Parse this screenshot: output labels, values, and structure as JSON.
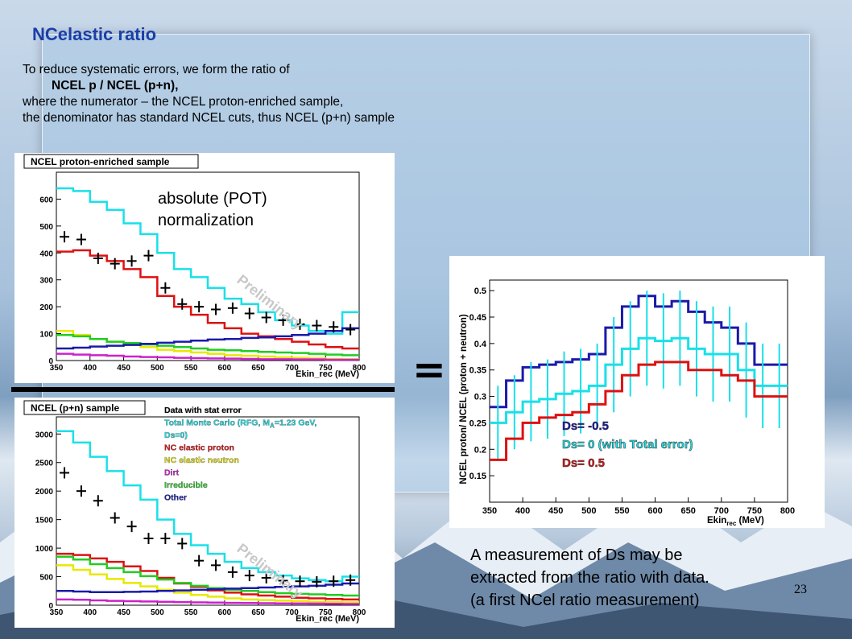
{
  "slide": {
    "title": "NCelastic ratio",
    "intro_lines": [
      "To reduce systematic errors, we form the ratio of",
      "NCEL p / NCEL (p+n),",
      "where the numerator – the NCEL proton-enriched sample,",
      "the denominator has standard NCEL cuts, thus NCEL (p+n) sample"
    ],
    "note_lines": [
      "absolute (POT)",
      "normalization"
    ],
    "equals": "=",
    "conclusion_lines": [
      "A  measurement of Ds may be",
      "extracted from the ratio with data.",
      "(a first NCel ratio measurement)"
    ],
    "page_number": "23",
    "watermark": "Preliminary"
  },
  "colors": {
    "title": "#1a3fa8",
    "data": "#000000",
    "total_mc": "#19e0e8",
    "nc_proton": "#dd1111",
    "nc_neutron": "#e8e800",
    "dirt": "#cc22cc",
    "irreducible": "#22cc22",
    "other": "#1a1aaa"
  },
  "chart_data": [
    {
      "type": "histogram",
      "title": "NCEL proton-enriched sample",
      "xlabel": "Ekin_rec (MeV)",
      "xlim": [
        350,
        800
      ],
      "ylim": [
        0,
        700
      ],
      "xticks": [
        350,
        400,
        450,
        500,
        550,
        600,
        650,
        700,
        750,
        800
      ],
      "yticks": [
        0,
        100,
        200,
        300,
        400,
        500,
        600
      ],
      "bin_edges": [
        350,
        375,
        400,
        425,
        450,
        475,
        500,
        525,
        550,
        575,
        600,
        625,
        650,
        675,
        700,
        725,
        750,
        775,
        800
      ],
      "series": [
        {
          "name": "Total Monte Carlo",
          "color_key": "total_mc",
          "values": [
            640,
            630,
            590,
            560,
            510,
            470,
            400,
            340,
            310,
            270,
            230,
            210,
            180,
            150,
            130,
            110,
            100,
            180
          ]
        },
        {
          "name": "NC elastic proton",
          "color_key": "nc_proton",
          "values": [
            405,
            410,
            390,
            370,
            340,
            310,
            240,
            200,
            170,
            140,
            120,
            100,
            90,
            80,
            70,
            60,
            50,
            45
          ]
        },
        {
          "name": "NC elastic neutron",
          "color_key": "nc_neutron",
          "values": [
            110,
            95,
            80,
            70,
            60,
            50,
            40,
            35,
            30,
            25,
            20,
            18,
            15,
            12,
            10,
            8,
            6,
            5
          ]
        },
        {
          "name": "Dirt",
          "color_key": "dirt",
          "values": [
            25,
            22,
            20,
            18,
            15,
            13,
            12,
            10,
            9,
            8,
            7,
            6,
            5,
            5,
            4,
            4,
            3,
            3
          ]
        },
        {
          "name": "Irreducible",
          "color_key": "irreducible",
          "values": [
            95,
            90,
            80,
            70,
            65,
            60,
            55,
            50,
            45,
            40,
            38,
            35,
            32,
            30,
            28,
            25,
            22,
            20
          ]
        },
        {
          "name": "Other",
          "color_key": "other",
          "values": [
            45,
            48,
            52,
            55,
            58,
            62,
            66,
            70,
            74,
            78,
            80,
            84,
            86,
            90,
            95,
            100,
            110,
            120
          ]
        }
      ],
      "data_points": {
        "x": [
          362,
          387,
          412,
          437,
          462,
          487,
          512,
          537,
          562,
          587,
          612,
          637,
          662,
          687,
          712,
          737,
          762,
          787
        ],
        "y": [
          460,
          450,
          380,
          360,
          370,
          390,
          270,
          210,
          200,
          190,
          195,
          175,
          160,
          150,
          135,
          130,
          125,
          115
        ]
      }
    },
    {
      "type": "histogram",
      "title": "NCEL (p+n) sample",
      "xlabel": "Ekin_rec (MeV)",
      "xlim": [
        350,
        800
      ],
      "ylim": [
        0,
        3300
      ],
      "xticks": [
        350,
        400,
        450,
        500,
        550,
        600,
        650,
        700,
        750,
        800
      ],
      "yticks": [
        0,
        500,
        1000,
        1500,
        2000,
        2500,
        3000
      ],
      "legend_entries": [
        {
          "label": "Data with stat error",
          "color_key": "data"
        },
        {
          "label": "Total Monte Carlo (RFG, M",
          "sub": "A",
          "tail": "=1.23 GeV,",
          "color_key": "total_mc"
        },
        {
          "label": "Ds=0)",
          "color_key": "total_mc"
        },
        {
          "label": "NC elastic proton",
          "color_key": "nc_proton"
        },
        {
          "label": "NC elastic neutron",
          "color_key": "nc_neutron"
        },
        {
          "label": "Dirt",
          "color_key": "dirt"
        },
        {
          "label": "Irreducible",
          "color_key": "irreducible"
        },
        {
          "label": "Other",
          "color_key": "other"
        }
      ],
      "bin_edges": [
        350,
        375,
        400,
        425,
        450,
        475,
        500,
        525,
        550,
        575,
        600,
        625,
        650,
        675,
        700,
        725,
        750,
        775,
        800
      ],
      "series": [
        {
          "name": "Total Monte Carlo",
          "color_key": "total_mc",
          "values": [
            3050,
            2850,
            2600,
            2350,
            2100,
            1850,
            1500,
            1250,
            1050,
            900,
            760,
            650,
            580,
            520,
            470,
            440,
            420,
            500
          ]
        },
        {
          "name": "NC elastic proton",
          "color_key": "nc_proton",
          "values": [
            900,
            880,
            820,
            760,
            680,
            600,
            480,
            380,
            320,
            260,
            220,
            190,
            170,
            150,
            130,
            120,
            110,
            100
          ]
        },
        {
          "name": "NC elastic neutron",
          "color_key": "nc_neutron",
          "values": [
            700,
            620,
            540,
            460,
            390,
            330,
            270,
            220,
            180,
            150,
            120,
            100,
            90,
            80,
            70,
            60,
            55,
            50
          ]
        },
        {
          "name": "Dirt",
          "color_key": "dirt",
          "values": [
            100,
            95,
            85,
            75,
            70,
            65,
            60,
            55,
            50,
            45,
            40,
            38,
            35,
            32,
            30,
            28,
            25,
            22
          ]
        },
        {
          "name": "Irreducible",
          "color_key": "irreducible",
          "values": [
            850,
            800,
            720,
            650,
            580,
            510,
            450,
            390,
            340,
            300,
            270,
            250,
            230,
            210,
            200,
            190,
            180,
            170
          ]
        },
        {
          "name": "Other",
          "color_key": "other",
          "values": [
            250,
            240,
            230,
            230,
            235,
            240,
            250,
            260,
            270,
            280,
            290,
            300,
            310,
            320,
            330,
            340,
            360,
            380
          ]
        }
      ],
      "data_points": {
        "x": [
          362,
          387,
          412,
          437,
          462,
          487,
          512,
          537,
          562,
          587,
          612,
          637,
          662,
          687,
          712,
          737,
          762,
          787
        ],
        "y": [
          2320,
          2000,
          1830,
          1530,
          1380,
          1170,
          1170,
          1080,
          780,
          700,
          580,
          520,
          480,
          430,
          420,
          410,
          420,
          440
        ]
      }
    },
    {
      "type": "histogram",
      "title": "",
      "ylabel": "NCEL proton/ NCEL (proton + neutron)",
      "xlabel": "Ekin",
      "xlabel_sub": "rec",
      "xlabel_unit": " (MeV)",
      "xlim": [
        350,
        800
      ],
      "ylim": [
        0.1,
        0.52
      ],
      "xticks": [
        350,
        400,
        450,
        500,
        550,
        600,
        650,
        700,
        750,
        800
      ],
      "yticks": [
        0.15,
        0.2,
        0.25,
        0.3,
        0.35,
        0.4,
        0.45,
        0.5
      ],
      "legend_entries": [
        {
          "label": "Ds= -0.5",
          "color_key": "other"
        },
        {
          "label": "Ds= 0 (with Total error)",
          "color_key": "total_mc"
        },
        {
          "label": "Ds= 0.5",
          "color_key": "nc_proton"
        }
      ],
      "bin_edges": [
        350,
        375,
        400,
        425,
        450,
        475,
        500,
        525,
        550,
        575,
        600,
        625,
        650,
        675,
        700,
        725,
        750,
        775,
        800
      ],
      "series": [
        {
          "name": "Ds= -0.5",
          "color_key": "other",
          "values": [
            0.28,
            0.33,
            0.355,
            0.36,
            0.365,
            0.37,
            0.38,
            0.43,
            0.47,
            0.49,
            0.47,
            0.48,
            0.46,
            0.44,
            0.43,
            0.4,
            0.36,
            0.36
          ]
        },
        {
          "name": "Ds= 0 (with Total error)",
          "color_key": "total_mc",
          "values": [
            0.25,
            0.27,
            0.29,
            0.295,
            0.305,
            0.31,
            0.32,
            0.36,
            0.39,
            0.41,
            0.405,
            0.41,
            0.39,
            0.38,
            0.38,
            0.35,
            0.32,
            0.32
          ],
          "errors": [
            0.07,
            0.07,
            0.075,
            0.075,
            0.08,
            0.08,
            0.08,
            0.09,
            0.09,
            0.09,
            0.09,
            0.09,
            0.09,
            0.09,
            0.09,
            0.09,
            0.08,
            0.08
          ]
        },
        {
          "name": "Ds= 0.5",
          "color_key": "nc_proton",
          "values": [
            0.18,
            0.22,
            0.25,
            0.26,
            0.265,
            0.27,
            0.285,
            0.31,
            0.34,
            0.36,
            0.365,
            0.365,
            0.35,
            0.35,
            0.34,
            0.33,
            0.3,
            0.3
          ]
        }
      ]
    }
  ]
}
